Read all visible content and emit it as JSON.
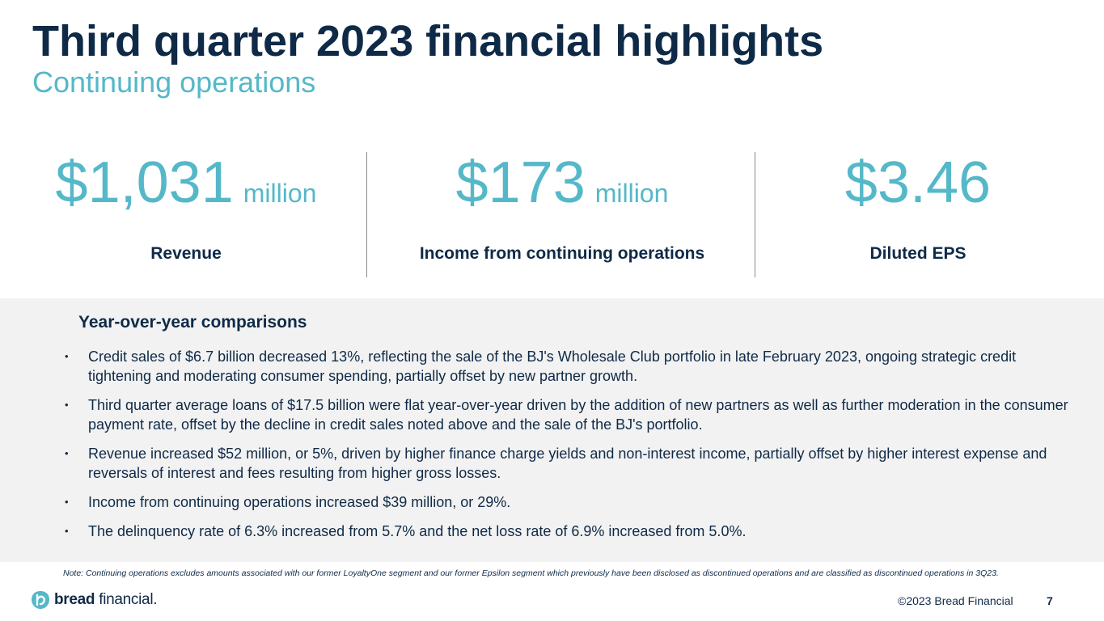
{
  "slide": {
    "title": "Third quarter 2023 financial highlights",
    "subtitle": "Continuing operations"
  },
  "kpis": [
    {
      "value": "$1,031",
      "unit": "million",
      "label": "Revenue"
    },
    {
      "value": "$173",
      "unit": "million",
      "label": "Income from continuing operations"
    },
    {
      "value": "$3.46",
      "unit": "",
      "label": "Diluted EPS"
    }
  ],
  "comparisons": {
    "heading": "Year-over-year comparisons",
    "bullet_symbol": "•",
    "items": [
      "Credit sales of $6.7 billion decreased 13%, reflecting the sale of the BJ's Wholesale Club portfolio in late February 2023, ongoing strategic credit tightening and moderating consumer spending, partially offset by new partner growth.",
      "Third quarter average loans of $17.5 billion were flat year-over-year driven by the addition of new partners as well as further moderation in the consumer payment rate, offset by the decline in credit sales noted above and the sale of the BJ's portfolio.",
      "Revenue increased $52 million, or 5%, driven by higher finance charge yields and non-interest income, partially offset by higher interest expense and reversals of interest and fees resulting from higher gross losses.",
      "Income from continuing operations increased $39 million, or 29%.",
      "The delinquency rate of 6.3% increased from 5.7% and the net loss rate of 6.9% increased from 5.0%."
    ]
  },
  "note": "Note: Continuing operations excludes amounts associated with our former LoyaltyOne segment and our former Epsilon segment which previously have been disclosed as discontinued operations and are classified as discontinued operations in 3Q23.",
  "footer": {
    "logo_bold": "bread",
    "logo_light": "financial",
    "logo_mark": ".",
    "copyright": "©2023 Bread Financial",
    "page_number": "7"
  },
  "colors": {
    "navy": "#0f2a47",
    "teal": "#55b8c8",
    "panel_bg": "#f2f2f2"
  },
  "icons": {
    "logo": "bread-financial-logo-icon"
  }
}
